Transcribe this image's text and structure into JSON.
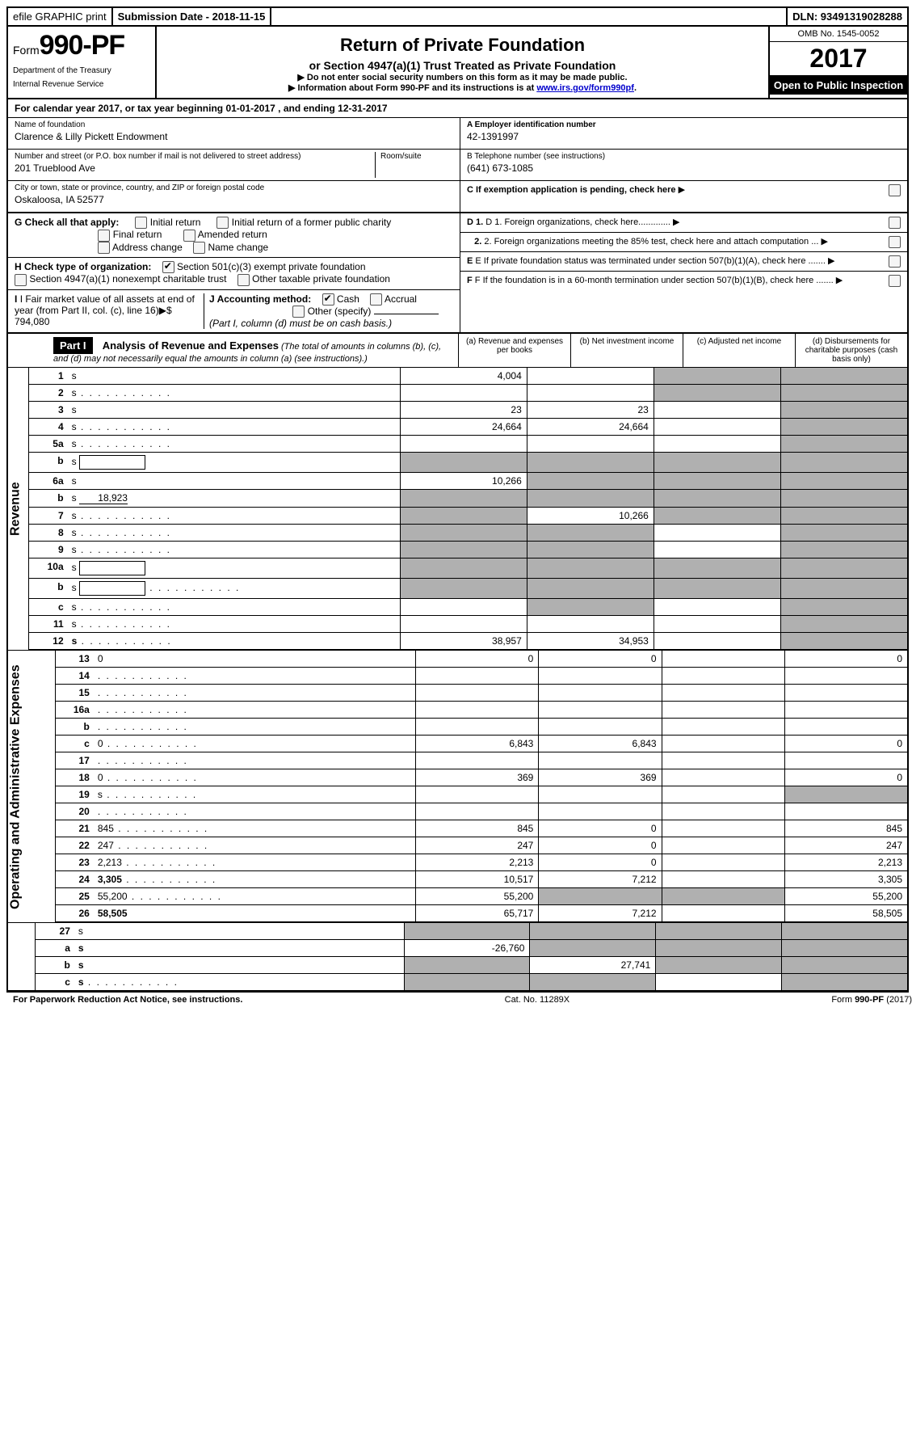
{
  "topbar": {
    "efile": "efile GRAPHIC print",
    "submission": "Submission Date - 2018-11-15",
    "dln": "DLN: 93491319028288"
  },
  "header": {
    "form_prefix": "Form",
    "form_number": "990-PF",
    "dept1": "Department of the Treasury",
    "dept2": "Internal Revenue Service",
    "title": "Return of Private Foundation",
    "subtitle": "or Section 4947(a)(1) Trust Treated as Private Foundation",
    "note1": "▶ Do not enter social security numbers on this form as it may be made public.",
    "note2_prefix": "▶ Information about Form 990-PF and its instructions is at ",
    "note2_link": "www.irs.gov/form990pf",
    "omb": "OMB No. 1545-0052",
    "year": "2017",
    "open_public": "Open to Public Inspection"
  },
  "calendar": "For calendar year 2017, or tax year beginning 01-01-2017              , and ending 12-31-2017",
  "info": {
    "name_label": "Name of foundation",
    "name": "Clarence & Lilly Pickett Endowment",
    "addr_label": "Number and street (or P.O. box number if mail is not delivered to street address)",
    "room_label": "Room/suite",
    "addr": "201 Trueblood Ave",
    "city_label": "City or town, state or province, country, and ZIP or foreign postal code",
    "city": "Oskaloosa, IA  52577",
    "a_label": "A Employer identification number",
    "a_val": "42-1391997",
    "b_label": "B Telephone number (see instructions)",
    "b_val": "(641) 673-1085",
    "c_label": "C If exemption application is pending, check here",
    "d1": "D 1. Foreign organizations, check here.............",
    "d2": "2. Foreign organizations meeting the 85% test, check here and attach computation ...",
    "e": "E  If private foundation status was terminated under section 507(b)(1)(A), check here .......",
    "f": "F  If the foundation is in a 60-month termination under section 507(b)(1)(B), check here .......",
    "g_label": "G Check all that apply:",
    "g_opts": [
      "Initial return",
      "Initial return of a former public charity",
      "Final return",
      "Amended return",
      "Address change",
      "Name change"
    ],
    "h_label": "H Check type of organization:",
    "h_opts": [
      "Section 501(c)(3) exempt private foundation",
      "Section 4947(a)(1) nonexempt charitable trust",
      "Other taxable private foundation"
    ],
    "i_label": "I Fair market value of all assets at end of year (from Part II, col. (c), line 16)▶$  794,080",
    "j_label": "J Accounting method:",
    "j_opts": [
      "Cash",
      "Accrual"
    ],
    "j_other": "Other (specify)",
    "j_note": "(Part I, column (d) must be on cash basis.)"
  },
  "part1": {
    "label": "Part I",
    "title": "Analysis of Revenue and Expenses",
    "title_note": "(The total of amounts in columns (b), (c), and (d) may not necessarily equal the amounts in column (a) (see instructions).)",
    "cols": {
      "a": "(a)   Revenue and expenses per books",
      "b": "(b)  Net investment income",
      "c": "(c)  Adjusted net income",
      "d": "(d)  Disbursements for charitable purposes (cash basis only)"
    }
  },
  "sections": {
    "revenue": "Revenue",
    "expenses": "Operating and Administrative Expenses"
  },
  "lines": [
    {
      "n": "1",
      "d": "s",
      "a": "4,004",
      "b": "",
      "c": "s"
    },
    {
      "n": "2",
      "d": "s",
      "a": "",
      "b": "",
      "c": "s",
      "dots": true
    },
    {
      "n": "3",
      "d": "s",
      "a": "23",
      "b": "23",
      "c": ""
    },
    {
      "n": "4",
      "d": "s",
      "a": "24,664",
      "b": "24,664",
      "c": "",
      "dots": true
    },
    {
      "n": "5a",
      "d": "s",
      "a": "",
      "b": "",
      "c": "",
      "dots": true
    },
    {
      "n": "b",
      "d": "s",
      "a": "s",
      "b": "s",
      "c": "s",
      "box": true
    },
    {
      "n": "6a",
      "d": "s",
      "a": "10,266",
      "b": "s",
      "c": "s"
    },
    {
      "n": "b",
      "d": "s",
      "a": "s",
      "b": "s",
      "c": "s",
      "inline": "18,923"
    },
    {
      "n": "7",
      "d": "s",
      "a": "s",
      "b": "10,266",
      "c": "s",
      "dots": true
    },
    {
      "n": "8",
      "d": "s",
      "a": "s",
      "b": "s",
      "c": "",
      "dots": true
    },
    {
      "n": "9",
      "d": "s",
      "a": "s",
      "b": "s",
      "c": "",
      "dots": true
    },
    {
      "n": "10a",
      "d": "s",
      "a": "s",
      "b": "s",
      "c": "s",
      "box": true
    },
    {
      "n": "b",
      "d": "s",
      "a": "s",
      "b": "s",
      "c": "s",
      "box": true,
      "dots": true
    },
    {
      "n": "c",
      "d": "s",
      "a": "",
      "b": "s",
      "c": "",
      "dots": true
    },
    {
      "n": "11",
      "d": "s",
      "a": "",
      "b": "",
      "c": "",
      "dots": true
    },
    {
      "n": "12",
      "d": "s",
      "a": "38,957",
      "b": "34,953",
      "c": "",
      "bold": true,
      "dots": true,
      "divider": true
    }
  ],
  "elines": [
    {
      "n": "13",
      "d": "0",
      "a": "0",
      "b": "0",
      "c": ""
    },
    {
      "n": "14",
      "d": "",
      "a": "",
      "b": "",
      "c": "",
      "dots": true
    },
    {
      "n": "15",
      "d": "",
      "a": "",
      "b": "",
      "c": "",
      "dots": true
    },
    {
      "n": "16a",
      "d": "",
      "a": "",
      "b": "",
      "c": "",
      "dots": true
    },
    {
      "n": "b",
      "d": "",
      "a": "",
      "b": "",
      "c": "",
      "dots": true
    },
    {
      "n": "c",
      "d": "0",
      "a": "6,843",
      "b": "6,843",
      "c": "",
      "dots": true
    },
    {
      "n": "17",
      "d": "",
      "a": "",
      "b": "",
      "c": "",
      "dots": true
    },
    {
      "n": "18",
      "d": "0",
      "a": "369",
      "b": "369",
      "c": "",
      "dots": true
    },
    {
      "n": "19",
      "d": "s",
      "a": "",
      "b": "",
      "c": "",
      "dots": true
    },
    {
      "n": "20",
      "d": "",
      "a": "",
      "b": "",
      "c": "",
      "dots": true
    },
    {
      "n": "21",
      "d": "845",
      "a": "845",
      "b": "0",
      "c": "",
      "dots": true
    },
    {
      "n": "22",
      "d": "247",
      "a": "247",
      "b": "0",
      "c": "",
      "dots": true
    },
    {
      "n": "23",
      "d": "2,213",
      "a": "2,213",
      "b": "0",
      "c": "",
      "dots": true
    },
    {
      "n": "24",
      "d": "3,305",
      "a": "10,517",
      "b": "7,212",
      "c": "",
      "bold": true,
      "dots": true
    },
    {
      "n": "25",
      "d": "55,200",
      "a": "55,200",
      "b": "s",
      "c": "s",
      "dots": true
    },
    {
      "n": "26",
      "d": "58,505",
      "a": "65,717",
      "b": "7,212",
      "c": "",
      "bold": true,
      "divider": true
    }
  ],
  "flines": [
    {
      "n": "27",
      "d": "s",
      "a": "s",
      "b": "s",
      "c": "s"
    },
    {
      "n": "a",
      "d": "s",
      "a": "-26,760",
      "b": "s",
      "c": "s",
      "bold": true
    },
    {
      "n": "b",
      "d": "s",
      "a": "s",
      "b": "27,741",
      "c": "s",
      "bold": true
    },
    {
      "n": "c",
      "d": "s",
      "a": "s",
      "b": "s",
      "c": "",
      "bold": true,
      "dots": true
    }
  ],
  "footer": {
    "left": "For Paperwork Reduction Act Notice, see instructions.",
    "center": "Cat. No. 11289X",
    "right": "Form 990-PF (2017)"
  }
}
